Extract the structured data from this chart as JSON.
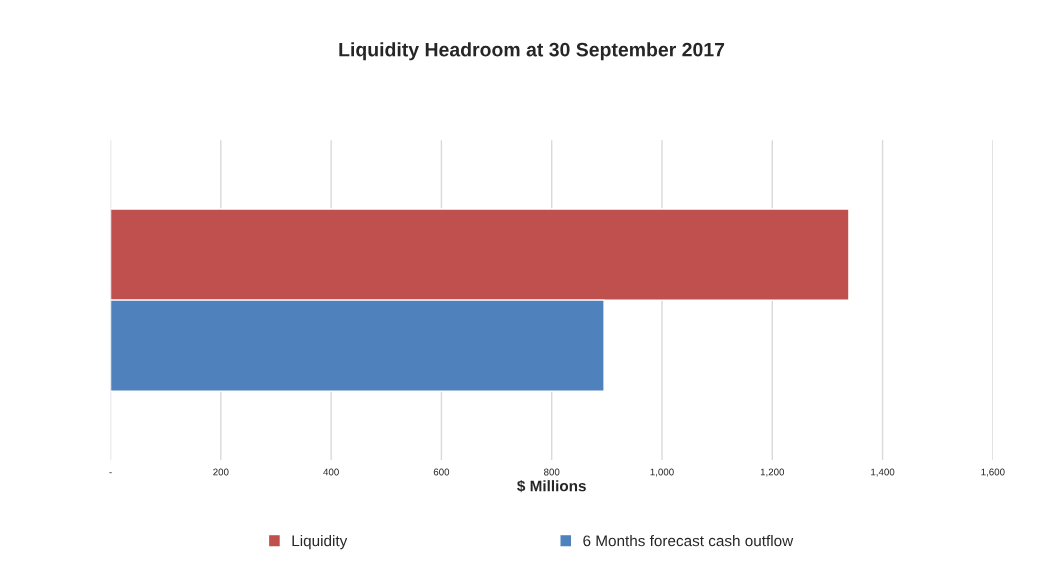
{
  "chart_data": {
    "type": "bar",
    "orientation": "horizontal",
    "title": "Liquidity Headroom at 30 September 2017",
    "xlabel": "$ Millions",
    "categories": [
      null
    ],
    "series": [
      {
        "name": "Liquidity",
        "color": "#c0504d",
        "values": [
          1339
        ]
      },
      {
        "name": "6 Months forecast cash outflow",
        "color": "#4f81bd",
        "values": [
          895
        ]
      }
    ],
    "xlim": [
      0,
      1600
    ],
    "xticks": [
      {
        "value": 0,
        "label": "-"
      },
      200,
      400,
      600,
      800,
      {
        "value": 1000,
        "label": "1,000"
      },
      {
        "value": 1200,
        "label": "1,200"
      },
      {
        "value": 1400,
        "label": "1,400"
      },
      {
        "value": 1600,
        "label": "1,600"
      }
    ],
    "grid": "x",
    "legend": "bottom"
  }
}
